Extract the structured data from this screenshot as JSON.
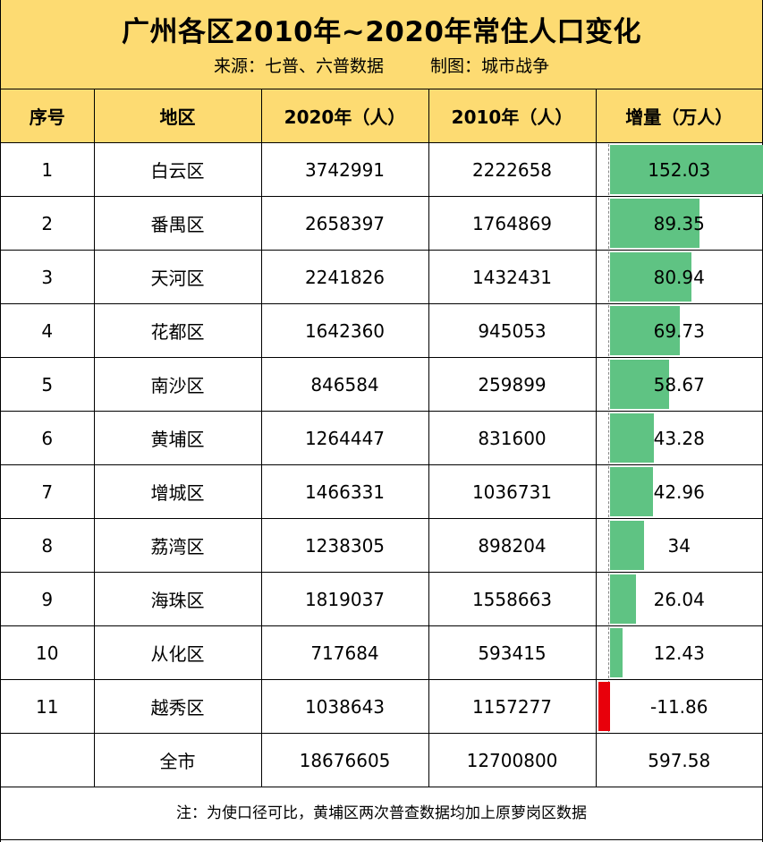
{
  "title": "广州各区2010年~2020年常住人口变化",
  "subtitle_source": "来源：七普、六普数据",
  "subtitle_author": "制图：城市战争",
  "headers": [
    "序号",
    "地区",
    "2020年（人）",
    "2010年（人）",
    "增量（万人）"
  ],
  "rows": [
    {
      "no": "1",
      "district": "白云区",
      "pop2020": "3742991",
      "pop2010": "2222658",
      "increase": "152.03",
      "increase_value": 152.03
    },
    {
      "no": "2",
      "district": "番禺区",
      "pop2020": "2658397",
      "pop2010": "1764869",
      "increase": "89.35",
      "increase_value": 89.35
    },
    {
      "no": "3",
      "district": "天河区",
      "pop2020": "2241826",
      "pop2010": "1432431",
      "increase": "80.94",
      "increase_value": 80.94
    },
    {
      "no": "4",
      "district": "花都区",
      "pop2020": "1642360",
      "pop2010": "945053",
      "increase": "69.73",
      "increase_value": 69.73
    },
    {
      "no": "5",
      "district": "南沙区",
      "pop2020": "846584",
      "pop2010": "259899",
      "increase": "58.67",
      "increase_value": 58.67
    },
    {
      "no": "6",
      "district": "黄埔区",
      "pop2020": "1264447",
      "pop2010": "831600",
      "increase": "43.28",
      "increase_value": 43.28
    },
    {
      "no": "7",
      "district": "增城区",
      "pop2020": "1466331",
      "pop2010": "1036731",
      "increase": "42.96",
      "increase_value": 42.96
    },
    {
      "no": "8",
      "district": "荔湾区",
      "pop2020": "1238305",
      "pop2010": "898204",
      "increase": "34",
      "increase_value": 34
    },
    {
      "no": "9",
      "district": "海珠区",
      "pop2020": "1819037",
      "pop2010": "1558663",
      "increase": "26.04",
      "increase_value": 26.04
    },
    {
      "no": "10",
      "district": "从化区",
      "pop2020": "717684",
      "pop2010": "593415",
      "increase": "12.43",
      "increase_value": 12.43
    },
    {
      "no": "11",
      "district": "越秀区",
      "pop2020": "1038643",
      "pop2010": "1157277",
      "increase": "-11.86",
      "increase_value": -11.86
    }
  ],
  "total": {
    "no": "",
    "district": "全市",
    "pop2020": "18676605",
    "pop2010": "12700800",
    "increase": "597.58"
  },
  "note": "注：为使口径可比，黄埔区两次普查数据均加上原萝岗区数据",
  "colors": {
    "header_bg": "#fddb72",
    "bar_positive": "#5fc383",
    "bar_negative": "#e8000b"
  }
}
